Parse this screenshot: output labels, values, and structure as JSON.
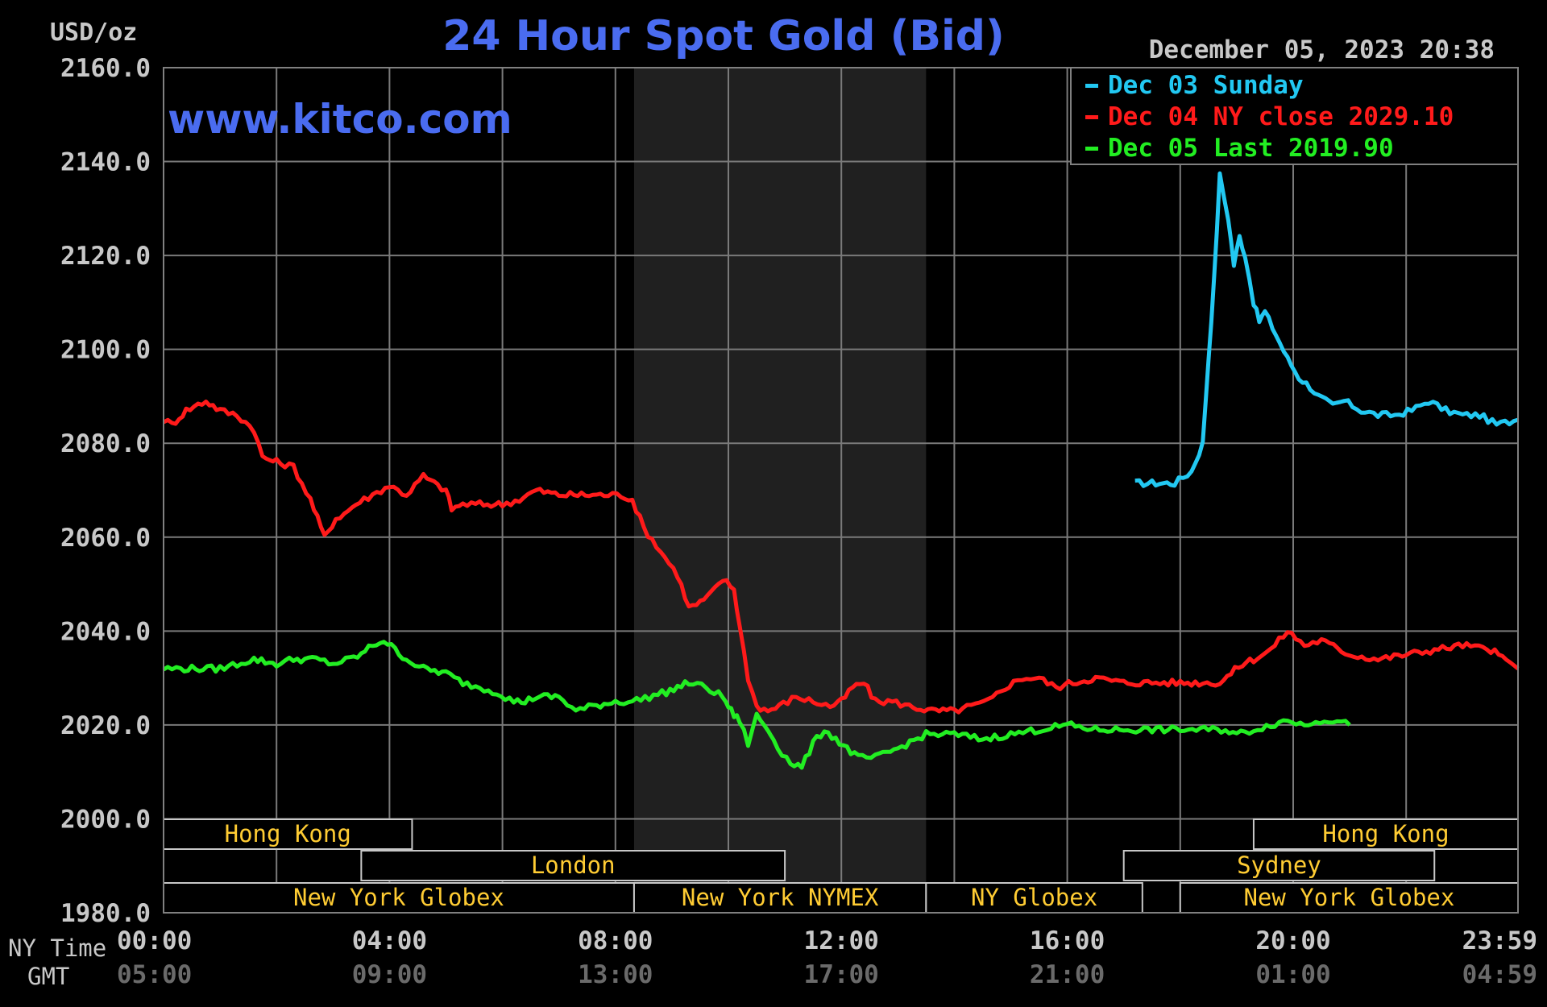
{
  "header": {
    "title": "24 Hour Spot Gold (Bid)",
    "unit": "USD/oz",
    "timestamp": "December 05, 2023 20:38",
    "website": "www.kitco.com"
  },
  "legend": [
    {
      "label": "Dec 03 Sunday",
      "color": "#22c8f2"
    },
    {
      "label": "Dec 04 NY close 2029.10",
      "color": "#ff1a1a"
    },
    {
      "label": "Dec 05 Last 2019.90",
      "color": "#22ee22"
    }
  ],
  "axes": {
    "ny_time_label": "NY Time",
    "gmt_label": "GMT",
    "x_ticks_ny": [
      "00:00",
      "04:00",
      "08:00",
      "12:00",
      "16:00",
      "20:00",
      "23:59"
    ],
    "x_ticks_gmt": [
      "05:00",
      "09:00",
      "13:00",
      "17:00",
      "21:00",
      "01:00",
      "04:59"
    ],
    "y_ticks": [
      "2160.0",
      "2140.0",
      "2120.0",
      "2100.0",
      "2080.0",
      "2060.0",
      "2040.0",
      "2020.0",
      "2000.0",
      "1980.0"
    ]
  },
  "sessions": [
    {
      "label": "Hong Kong",
      "row": 0,
      "start": 0.0,
      "end": 4.4
    },
    {
      "label": "Hong Kong",
      "row": 0,
      "start": 19.3,
      "end": 23.98
    },
    {
      "label": "London",
      "row": 1,
      "start": 3.5,
      "end": 11.0
    },
    {
      "label": "Sydney",
      "row": 1,
      "start": 17.0,
      "end": 22.5
    },
    {
      "label": "New York Globex",
      "row": 2,
      "start": 0.0,
      "end": 8.33
    },
    {
      "label": "New York NYMEX",
      "row": 2,
      "start": 8.33,
      "end": 13.5
    },
    {
      "label": "NY Globex",
      "row": 2,
      "start": 13.5,
      "end": 17.33
    },
    {
      "label": "New York Globex",
      "row": 2,
      "start": 18.0,
      "end": 23.98
    }
  ],
  "chart_data": {
    "type": "line",
    "title": "24 Hour Spot Gold (Bid)",
    "ylabel": "USD/oz",
    "xlabel": "NY Time",
    "xlim": [
      0,
      23.98
    ],
    "ylim": [
      1980,
      2160
    ],
    "shaded_hours": [
      8.33,
      13.5
    ],
    "grid": true,
    "legend_position": "top-right",
    "series": [
      {
        "name": "Dec 03 Sunday",
        "color": "#22c8f2",
        "x": [
          17.2,
          17.5,
          17.9,
          18.2,
          18.4,
          18.5,
          18.6,
          18.7,
          18.85,
          18.95,
          19.05,
          19.15,
          19.3,
          19.4,
          19.5,
          19.7,
          19.9,
          20.1,
          20.3,
          20.45,
          20.7,
          20.9,
          21.2,
          21.5,
          21.8,
          22.1,
          22.4,
          22.7,
          23.0,
          23.3,
          23.6,
          23.98
        ],
        "y": [
          2071.5,
          2071.5,
          2071.5,
          2074,
          2080,
          2098,
          2115,
          2137,
          2128,
          2118,
          2124,
          2120,
          2110,
          2106,
          2108,
          2103,
          2098,
          2094,
          2092,
          2090,
          2088,
          2089,
          2087,
          2086,
          2086,
          2087,
          2089,
          2087,
          2086,
          2086,
          2084,
          2085
        ]
      },
      {
        "name": "Dec 04 NY close 2029.10",
        "color": "#ff1a1a",
        "x": [
          0.0,
          0.15,
          0.4,
          0.75,
          1.0,
          1.3,
          1.6,
          1.75,
          2.0,
          2.3,
          2.6,
          2.85,
          3.05,
          3.2,
          3.4,
          3.7,
          4.0,
          4.3,
          4.6,
          4.85,
          5.0,
          5.1,
          5.3,
          5.6,
          6.0,
          6.3,
          6.6,
          7.0,
          7.4,
          7.8,
          8.1,
          8.3,
          8.5,
          8.8,
          9.1,
          9.3,
          9.5,
          9.7,
          9.9,
          10.1,
          10.2,
          10.35,
          10.5,
          10.7,
          10.9,
          11.2,
          11.5,
          11.8,
          12.0,
          12.2,
          12.4,
          12.6,
          12.9,
          13.2,
          13.6,
          14.0,
          14.3,
          14.6,
          14.9,
          15.2,
          15.5,
          15.8,
          16.1,
          16.5,
          17.0,
          17.5,
          18.0,
          18.4,
          18.7,
          18.9,
          19.1,
          19.3,
          19.6,
          19.9,
          20.2,
          20.5,
          21.0,
          21.5,
          22.0,
          22.5,
          23.0,
          23.5,
          23.98
        ],
        "y": [
          2085,
          2084,
          2087,
          2089,
          2087,
          2086,
          2083,
          2077,
          2076,
          2075,
          2068,
          2060,
          2064,
          2065,
          2067,
          2069,
          2071,
          2069,
          2073,
          2071,
          2070,
          2066,
          2067,
          2067,
          2067,
          2068,
          2070,
          2069,
          2069,
          2069,
          2069,
          2068,
          2062,
          2057,
          2052,
          2045,
          2046,
          2048,
          2051,
          2049,
          2041,
          2030,
          2024,
          2023,
          2024,
          2026,
          2025,
          2024,
          2025,
          2028,
          2029,
          2025,
          2025,
          2024,
          2023,
          2023,
          2024,
          2025,
          2028,
          2030,
          2030,
          2028,
          2029,
          2030,
          2029,
          2029,
          2029,
          2029,
          2029,
          2031,
          2033,
          2034,
          2036,
          2040,
          2037,
          2038,
          2035,
          2034,
          2035,
          2036,
          2037,
          2036,
          2032
        ]
      },
      {
        "name": "Dec 05 Last 2019.90",
        "color": "#22ee22",
        "x": [
          0.0,
          0.3,
          0.7,
          1.0,
          1.3,
          1.6,
          2.0,
          2.3,
          2.7,
          3.0,
          3.3,
          3.5,
          3.7,
          3.9,
          4.1,
          4.3,
          4.6,
          5.0,
          5.3,
          5.6,
          5.9,
          6.2,
          6.4,
          6.6,
          7.0,
          7.3,
          7.6,
          8.0,
          8.3,
          8.6,
          8.9,
          9.1,
          9.3,
          9.6,
          9.9,
          10.0,
          10.1,
          10.2,
          10.35,
          10.5,
          10.7,
          10.8,
          10.95,
          11.1,
          11.3,
          11.5,
          11.7,
          11.9,
          12.1,
          12.3,
          12.6,
          13.0,
          13.5,
          14.0,
          14.5,
          15.0,
          15.5,
          16.0,
          16.5,
          17.0,
          17.5,
          18.0,
          18.5,
          18.8,
          19.0,
          19.3,
          19.6,
          19.9,
          20.2,
          20.4,
          20.7,
          21.0
        ],
        "y": [
          2032,
          2032,
          2032,
          2032,
          2033,
          2034,
          2033,
          2034,
          2034,
          2033,
          2034,
          2035,
          2037,
          2038,
          2036,
          2034,
          2032,
          2031,
          2029,
          2028,
          2027,
          2025,
          2025,
          2026,
          2026,
          2023,
          2024,
          2025,
          2025,
          2026,
          2027,
          2028,
          2029,
          2028,
          2026,
          2024,
          2022,
          2021,
          2016,
          2022,
          2019,
          2017,
          2014,
          2012,
          2011,
          2016,
          2019,
          2017,
          2015,
          2013,
          2013,
          2015,
          2018,
          2018,
          2017,
          2018,
          2019,
          2020,
          2019,
          2019,
          2019,
          2019,
          2019,
          2019,
          2018,
          2019,
          2020,
          2021,
          2020,
          2021,
          2021,
          2020
        ]
      }
    ]
  }
}
